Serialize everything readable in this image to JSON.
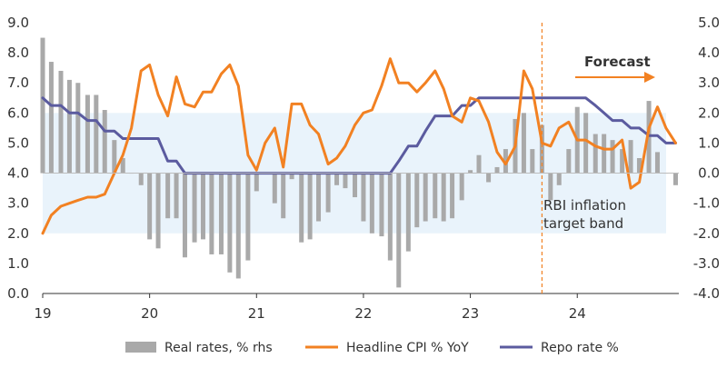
{
  "chart_data": {
    "type": "bar+line",
    "x_range": [
      2019.0,
      2024.95
    ],
    "x_ticks": [
      {
        "value": 2019,
        "label": "19"
      },
      {
        "value": 2020,
        "label": "20"
      },
      {
        "value": 2021,
        "label": "21"
      },
      {
        "value": 2022,
        "label": "22"
      },
      {
        "value": 2023,
        "label": "23"
      },
      {
        "value": 2024,
        "label": "24"
      }
    ],
    "left_axis": {
      "range": [
        0,
        9
      ],
      "ticks": [
        "0.0",
        "1.0",
        "2.0",
        "3.0",
        "4.0",
        "5.0",
        "6.0",
        "7.0",
        "8.0",
        "9.0"
      ]
    },
    "right_axis": {
      "range": [
        -4,
        5
      ],
      "ticks": [
        "-4.0",
        "-3.0",
        "-2.0",
        "-1.0",
        "0.0",
        "1.0",
        "2.0",
        "3.0",
        "4.0",
        "5.0"
      ]
    },
    "inflation_band": {
      "low": 2,
      "high": 6,
      "label_lines": [
        "RBI inflation",
        "target band"
      ]
    },
    "forecast": {
      "start": 2023.67,
      "label": "Forecast"
    },
    "colors": {
      "bars": "#a9a9a9",
      "cpi": "#f28122",
      "repo": "#5b5b9f",
      "band": "#e9f3fb",
      "forecast_line": "#f28122"
    },
    "legend": {
      "bars": "Real rates, % rhs",
      "cpi": "Headline CPI % YoY",
      "repo": "Repo rate %"
    },
    "series": [
      {
        "key": "bars",
        "axis": "right",
        "x": [
          2019.0,
          2019.08,
          2019.17,
          2019.25,
          2019.33,
          2019.42,
          2019.5,
          2019.58,
          2019.67,
          2019.75,
          2019.83,
          2019.92,
          2020.0,
          2020.08,
          2020.17,
          2020.25,
          2020.33,
          2020.42,
          2020.5,
          2020.58,
          2020.67,
          2020.75,
          2020.83,
          2020.92,
          2021.0,
          2021.08,
          2021.17,
          2021.25,
          2021.33,
          2021.42,
          2021.5,
          2021.58,
          2021.67,
          2021.75,
          2021.83,
          2021.92,
          2022.0,
          2022.08,
          2022.17,
          2022.25,
          2022.33,
          2022.42,
          2022.5,
          2022.58,
          2022.67,
          2022.75,
          2022.83,
          2022.92,
          2023.0,
          2023.08,
          2023.17,
          2023.25,
          2023.33,
          2023.42,
          2023.5,
          2023.58,
          2023.67,
          2023.75,
          2023.83,
          2023.92,
          2024.0,
          2024.08,
          2024.17,
          2024.25,
          2024.33,
          2024.42,
          2024.5,
          2024.58,
          2024.67,
          2024.75,
          2024.83,
          2024.92
        ],
        "values": [
          4.5,
          3.7,
          3.4,
          3.1,
          3.0,
          2.6,
          2.6,
          2.1,
          1.1,
          0.5,
          0.0,
          -0.4,
          -2.2,
          -2.5,
          -1.5,
          -1.5,
          -2.8,
          -2.3,
          -2.2,
          -2.7,
          -2.7,
          -3.3,
          -3.5,
          -2.9,
          -0.6,
          0.0,
          -1.0,
          -1.5,
          -0.2,
          -2.3,
          -2.2,
          -1.6,
          -1.3,
          -0.4,
          -0.5,
          -0.8,
          -1.6,
          -2.0,
          -2.1,
          -2.9,
          -3.8,
          -2.6,
          -1.8,
          -1.6,
          -1.5,
          -1.6,
          -1.5,
          -0.9,
          0.1,
          0.6,
          -0.3,
          0.2,
          0.8,
          1.8,
          2.0,
          0.8,
          1.6,
          -0.9,
          -0.4,
          0.8,
          2.2,
          2.0,
          1.3,
          1.3,
          1.1,
          0.8,
          1.1,
          0.5,
          2.4,
          0.7,
          0.0,
          -0.4
        ]
      },
      {
        "key": "cpi",
        "axis": "left",
        "x": [
          2019.0,
          2019.08,
          2019.17,
          2019.25,
          2019.33,
          2019.42,
          2019.5,
          2019.58,
          2019.67,
          2019.75,
          2019.83,
          2019.92,
          2020.0,
          2020.08,
          2020.17,
          2020.25,
          2020.33,
          2020.42,
          2020.5,
          2020.58,
          2020.67,
          2020.75,
          2020.83,
          2020.92,
          2021.0,
          2021.08,
          2021.17,
          2021.25,
          2021.33,
          2021.42,
          2021.5,
          2021.58,
          2021.67,
          2021.75,
          2021.83,
          2021.92,
          2022.0,
          2022.08,
          2022.17,
          2022.25,
          2022.33,
          2022.42,
          2022.5,
          2022.58,
          2022.67,
          2022.75,
          2022.83,
          2022.92,
          2023.0,
          2023.08,
          2023.17,
          2023.25,
          2023.33,
          2023.42,
          2023.5,
          2023.58,
          2023.67,
          2023.75,
          2023.83,
          2023.92,
          2024.0,
          2024.08,
          2024.17,
          2024.25,
          2024.33,
          2024.42,
          2024.5,
          2024.58,
          2024.67,
          2024.75,
          2024.83,
          2024.92
        ],
        "values": [
          2.0,
          2.6,
          2.9,
          3.0,
          3.1,
          3.2,
          3.2,
          3.3,
          4.0,
          4.6,
          5.5,
          7.4,
          7.6,
          6.6,
          5.9,
          7.2,
          6.3,
          6.2,
          6.7,
          6.7,
          7.3,
          7.6,
          6.9,
          4.6,
          4.1,
          5.0,
          5.5,
          4.2,
          6.3,
          6.3,
          5.6,
          5.3,
          4.3,
          4.5,
          4.9,
          5.6,
          6.0,
          6.1,
          6.9,
          7.8,
          7.0,
          7.0,
          6.7,
          7.0,
          7.4,
          6.8,
          5.9,
          5.7,
          6.5,
          6.4,
          5.7,
          4.7,
          4.3,
          4.9,
          7.4,
          6.8,
          5.0,
          4.9,
          5.5,
          5.7,
          5.1,
          5.1,
          4.9,
          4.8,
          4.8,
          5.1,
          3.5,
          3.7,
          5.5,
          6.2,
          5.5,
          5.0
        ]
      },
      {
        "key": "repo",
        "axis": "left",
        "x": [
          2019.0,
          2019.08,
          2019.17,
          2019.25,
          2019.33,
          2019.42,
          2019.5,
          2019.58,
          2019.67,
          2019.75,
          2019.83,
          2019.92,
          2020.0,
          2020.08,
          2020.17,
          2020.25,
          2020.33,
          2020.42,
          2020.5,
          2020.58,
          2020.67,
          2020.75,
          2020.83,
          2020.92,
          2021.0,
          2021.08,
          2021.17,
          2021.25,
          2021.33,
          2021.42,
          2021.5,
          2021.58,
          2021.67,
          2021.75,
          2021.83,
          2021.92,
          2022.0,
          2022.08,
          2022.17,
          2022.25,
          2022.33,
          2022.42,
          2022.5,
          2022.58,
          2022.67,
          2022.75,
          2022.83,
          2022.92,
          2023.0,
          2023.08,
          2023.17,
          2023.25,
          2023.33,
          2023.42,
          2023.5,
          2023.58,
          2023.67,
          2023.75,
          2023.83,
          2023.92,
          2024.0,
          2024.08,
          2024.17,
          2024.25,
          2024.33,
          2024.42,
          2024.5,
          2024.58,
          2024.67,
          2024.75,
          2024.83,
          2024.92
        ],
        "values": [
          6.5,
          6.25,
          6.25,
          6.0,
          6.0,
          5.75,
          5.75,
          5.4,
          5.4,
          5.15,
          5.15,
          5.15,
          5.15,
          5.15,
          4.4,
          4.4,
          4.0,
          4.0,
          4.0,
          4.0,
          4.0,
          4.0,
          4.0,
          4.0,
          4.0,
          4.0,
          4.0,
          4.0,
          4.0,
          4.0,
          4.0,
          4.0,
          4.0,
          4.0,
          4.0,
          4.0,
          4.0,
          4.0,
          4.0,
          4.0,
          4.4,
          4.9,
          4.9,
          5.4,
          5.9,
          5.9,
          5.9,
          6.25,
          6.25,
          6.5,
          6.5,
          6.5,
          6.5,
          6.5,
          6.5,
          6.5,
          6.5,
          6.5,
          6.5,
          6.5,
          6.5,
          6.5,
          6.25,
          6.0,
          5.75,
          5.75,
          5.5,
          5.5,
          5.25,
          5.25,
          5.0,
          5.0
        ]
      }
    ]
  }
}
